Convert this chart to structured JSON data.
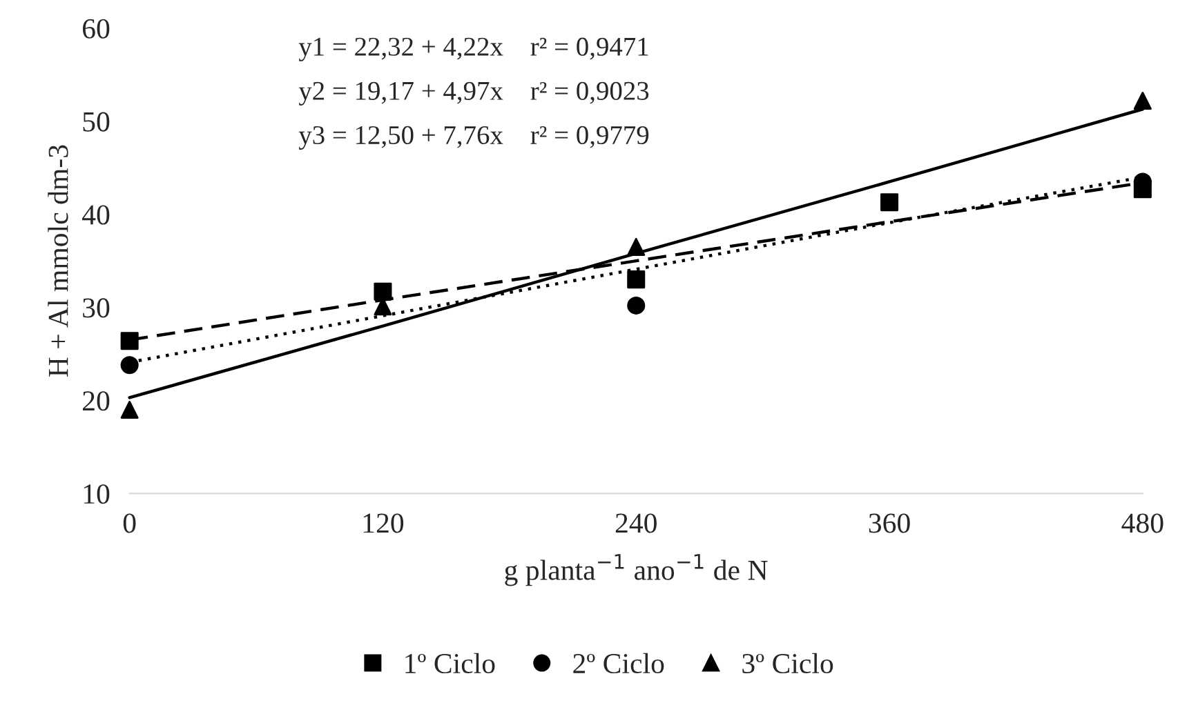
{
  "chart_data": {
    "type": "scatter",
    "xlabel": "g planta$^{−1}$ ano$^{−1}$ de N",
    "ylabel": "H + Al mmolc dm-3",
    "x": [
      0,
      120,
      240,
      360,
      480
    ],
    "xlim": [
      0,
      480
    ],
    "xticks": [
      0,
      120,
      240,
      360,
      480
    ],
    "ylim": [
      10,
      60
    ],
    "yticks": [
      10,
      20,
      30,
      40,
      50,
      60
    ],
    "grid": false,
    "legend": "bottom",
    "annotations": [
      "y1 = 22,32 + 4,22x    r² = 0,9471",
      "y2 = 19,17 + 4,97x    r² = 0,9023",
      "y3 = 12,50 + 7,76x    r² = 0,9779"
    ],
    "series": [
      {
        "name": "1º Ciclo",
        "color": "#000000",
        "marker": "square",
        "values": [
          26.4,
          31.7,
          33.0,
          41.3,
          42.7
        ]
      },
      {
        "name": "2º Ciclo",
        "color": "#000000",
        "marker": "circle",
        "values": [
          23.8,
          null,
          30.2,
          null,
          43.5
        ]
      },
      {
        "name": "3º Ciclo",
        "color": "#000000",
        "marker": "triangle",
        "values": [
          19.0,
          30.1,
          36.5,
          null,
          52.2
        ]
      },
      {
        "type": "line",
        "color": "#000000",
        "line_style": "dashed",
        "values": [
          26.5,
          30.8,
          35.0,
          39.2,
          43.4
        ]
      },
      {
        "type": "line",
        "color": "#000000",
        "line_style": "dotted",
        "values": [
          24.1,
          29.1,
          34.1,
          39.1,
          44.0
        ]
      },
      {
        "type": "line",
        "color": "#000000",
        "line_style": "solid",
        "values": [
          20.3,
          28.0,
          35.8,
          43.5,
          51.3
        ]
      }
    ]
  }
}
